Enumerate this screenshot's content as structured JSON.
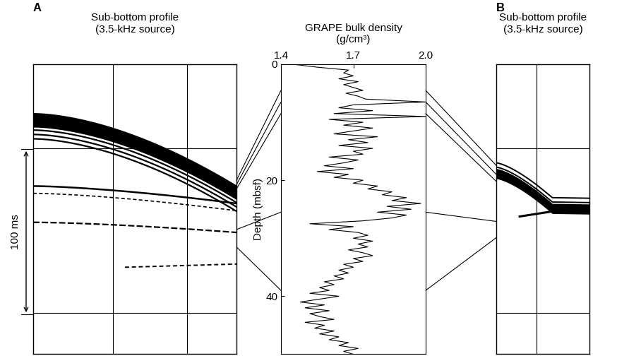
{
  "panels": [
    {
      "label": "A",
      "title": "Sub-bottom profile",
      "subtitle": "(3.5-kHz source)",
      "scale_bar": "100 ms"
    },
    {
      "label": "B",
      "title": "Sub-bottom profile",
      "subtitle": "(3.5-kHz source)"
    }
  ],
  "tie_depths": [
    4.5,
    6.5,
    8.5,
    25.5,
    39
  ],
  "chart_data": {
    "type": "line",
    "title": "GRAPE bulk density",
    "subtitle": "(g/cm³)",
    "y_label": "Depth (mbsf)",
    "color": "#000000",
    "xlim": [
      1.4,
      2.0
    ],
    "xticks": [
      1.4,
      1.7,
      2.0
    ],
    "ylim": [
      0,
      50
    ],
    "yticks": [
      0,
      20,
      40
    ],
    "y": [
      0,
      0.5,
      1,
      1.5,
      2,
      2.5,
      3,
      3.5,
      4,
      4.5,
      5,
      5.5,
      6,
      6.5,
      7,
      7.5,
      8,
      8.5,
      9,
      9.5,
      10,
      10.5,
      11,
      11.5,
      12,
      12.5,
      13,
      13.5,
      14,
      14.5,
      15,
      15.5,
      16,
      16.5,
      17,
      17.5,
      18,
      18.5,
      19,
      19.5,
      20,
      20.5,
      21,
      21.5,
      22,
      22.5,
      23,
      23.5,
      24,
      24.5,
      25,
      25.5,
      26,
      26.5,
      27,
      27.5,
      28,
      28.5,
      29,
      29.5,
      30,
      30.5,
      31,
      31.5,
      32,
      32.5,
      33,
      33.5,
      34,
      34.5,
      35,
      35.5,
      36,
      36.5,
      37,
      37.5,
      38,
      38.5,
      39,
      39.5,
      40,
      40.5,
      41,
      41.5,
      42,
      42.5,
      43,
      43.5,
      44,
      44.5,
      45,
      45.5,
      46,
      46.5,
      47,
      47.5,
      48,
      48.5,
      49,
      49.5,
      50
    ],
    "x": [
      1.45,
      1.55,
      1.68,
      1.66,
      1.7,
      1.64,
      1.72,
      1.66,
      1.7,
      1.74,
      1.67,
      1.72,
      1.75,
      2.0,
      1.7,
      1.64,
      1.78,
      1.62,
      2.0,
      1.6,
      1.74,
      1.66,
      1.78,
      1.7,
      1.62,
      1.8,
      1.68,
      1.76,
      1.64,
      1.78,
      1.7,
      1.74,
      1.6,
      1.72,
      1.66,
      1.58,
      1.7,
      1.55,
      1.68,
      1.62,
      1.74,
      1.7,
      1.8,
      1.76,
      1.86,
      1.82,
      1.92,
      1.86,
      1.98,
      1.84,
      1.94,
      1.8,
      1.92,
      1.86,
      1.74,
      1.52,
      1.7,
      1.6,
      1.72,
      1.76,
      1.7,
      1.78,
      1.72,
      1.76,
      1.68,
      1.74,
      1.78,
      1.7,
      1.74,
      1.66,
      1.7,
      1.64,
      1.68,
      1.62,
      1.66,
      1.58,
      1.62,
      1.56,
      1.6,
      1.52,
      1.64,
      1.56,
      1.48,
      1.58,
      1.5,
      1.6,
      1.52,
      1.56,
      1.62,
      1.5,
      1.58,
      1.54,
      1.62,
      1.56,
      1.64,
      1.6,
      1.68,
      1.64,
      1.72,
      1.66,
      1.7
    ]
  }
}
